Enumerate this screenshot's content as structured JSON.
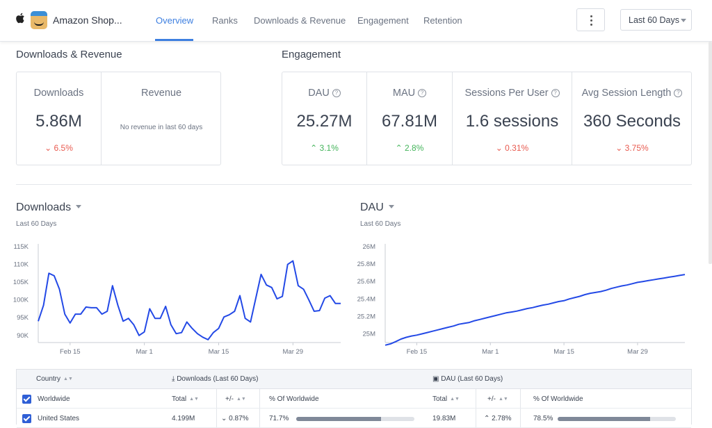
{
  "app": {
    "name": "Amazon Shop..."
  },
  "nav": {
    "tabs": [
      "Overview",
      "Ranks",
      "Downloads & Revenue",
      "Engagement",
      "Retention"
    ],
    "active": "Overview"
  },
  "date_range": {
    "label": "Last 60 Days"
  },
  "downloads_revenue": {
    "title": "Downloads & Revenue",
    "downloads": {
      "label": "Downloads",
      "value": "5.86M",
      "change": "6.5%",
      "direction": "down"
    },
    "revenue": {
      "label": "Revenue",
      "note": "No revenue in last 60 days"
    }
  },
  "engagement": {
    "title": "Engagement",
    "metrics": [
      {
        "label": "DAU",
        "value": "25.27M",
        "change": "3.1%",
        "direction": "up"
      },
      {
        "label": "MAU",
        "value": "67.81M",
        "change": "2.8%",
        "direction": "up"
      },
      {
        "label": "Sessions Per User",
        "value": "1.6 sessions",
        "change": "0.31%",
        "direction": "down"
      },
      {
        "label": "Avg Session Length",
        "value": "360 Seconds",
        "change": "3.75%",
        "direction": "down"
      }
    ]
  },
  "icons": {
    "platform": "apple-icon",
    "app": "amazon-shopping-app-icon",
    "menu": "kebab-menu-icon",
    "help": "help-circle-icon"
  },
  "colors": {
    "accent": "#3d7fe0",
    "line": "#2349e6",
    "down": "#e85a4f",
    "up": "#43b45a"
  },
  "chart_data": [
    {
      "type": "line",
      "title": "Downloads",
      "subtitle": "Last 60 Days",
      "ylim": [
        88000,
        115000
      ],
      "yticks": [
        90000,
        95000,
        100000,
        105000,
        110000,
        115000
      ],
      "ytick_labels": [
        "90K",
        "95K",
        "100K",
        "105K",
        "110K",
        "115K"
      ],
      "xtick_labels": [
        "Feb 15",
        "Mar 1",
        "Mar 15",
        "Mar 29"
      ],
      "xtick_index": [
        6,
        20,
        34,
        48
      ],
      "series": [
        {
          "values": [
            94000,
            98500,
            107500,
            106800,
            103000,
            96000,
            93500,
            96000,
            96000,
            98000,
            97800,
            97800,
            96000,
            96800,
            104000,
            98500,
            94000,
            94800,
            93000,
            90000,
            91000,
            97500,
            94800,
            94800,
            98200,
            93000,
            90500,
            90800,
            93800,
            92000,
            90500,
            89500,
            88800,
            90800,
            92000,
            95200,
            95800,
            96800,
            101200,
            94800,
            93800,
            100500,
            107200,
            104200,
            103500,
            100300,
            101000,
            110000,
            111000,
            104000,
            103000,
            100000,
            96800,
            97000,
            100500,
            101200,
            99000,
            99000
          ]
        }
      ]
    },
    {
      "type": "line",
      "title": "DAU",
      "subtitle": "Last 60 Days",
      "ylim": [
        24900000,
        26000000
      ],
      "yticks": [
        25000000,
        25200000,
        25400000,
        25600000,
        25800000,
        26000000
      ],
      "ytick_labels": [
        "25M",
        "25.2M",
        "25.4M",
        "25.6M",
        "25.8M",
        "26M"
      ],
      "xtick_labels": [
        "Feb 15",
        "Mar 1",
        "Mar 15",
        "Mar 29"
      ],
      "xtick_index": [
        6,
        20,
        34,
        48
      ],
      "series": [
        {
          "values": [
            24870000,
            24885000,
            24910000,
            24940000,
            24960000,
            24975000,
            24985000,
            25000000,
            25015000,
            25030000,
            25045000,
            25060000,
            25075000,
            25090000,
            25110000,
            25120000,
            25130000,
            25150000,
            25165000,
            25180000,
            25195000,
            25210000,
            25225000,
            25240000,
            25250000,
            25260000,
            25275000,
            25290000,
            25300000,
            25315000,
            25330000,
            25340000,
            25355000,
            25370000,
            25380000,
            25400000,
            25415000,
            25430000,
            25450000,
            25465000,
            25475000,
            25485000,
            25500000,
            25520000,
            25535000,
            25550000,
            25560000,
            25575000,
            25590000,
            25600000,
            25610000,
            25620000,
            25630000,
            25640000,
            25650000,
            25660000,
            25670000,
            25680000
          ]
        }
      ]
    }
  ],
  "table": {
    "headers": {
      "country": "Country",
      "downloads": "Downloads (Last 60 Days)",
      "dau": "DAU (Last 60 Days)"
    },
    "subheaders": {
      "total": "Total",
      "change": "+/-",
      "pct": "% Of Worldwide"
    },
    "rows": [
      {
        "country": "Worldwide"
      },
      {
        "country": "United States",
        "dl_total": "4.199M",
        "dl_change": "0.87%",
        "dl_pct": "71.7%",
        "dl_pct_value": 0.717,
        "dau_total": "19.83M",
        "dau_change": "2.78%",
        "dau_pct": "78.5%",
        "dau_pct_value": 0.785
      }
    ]
  }
}
